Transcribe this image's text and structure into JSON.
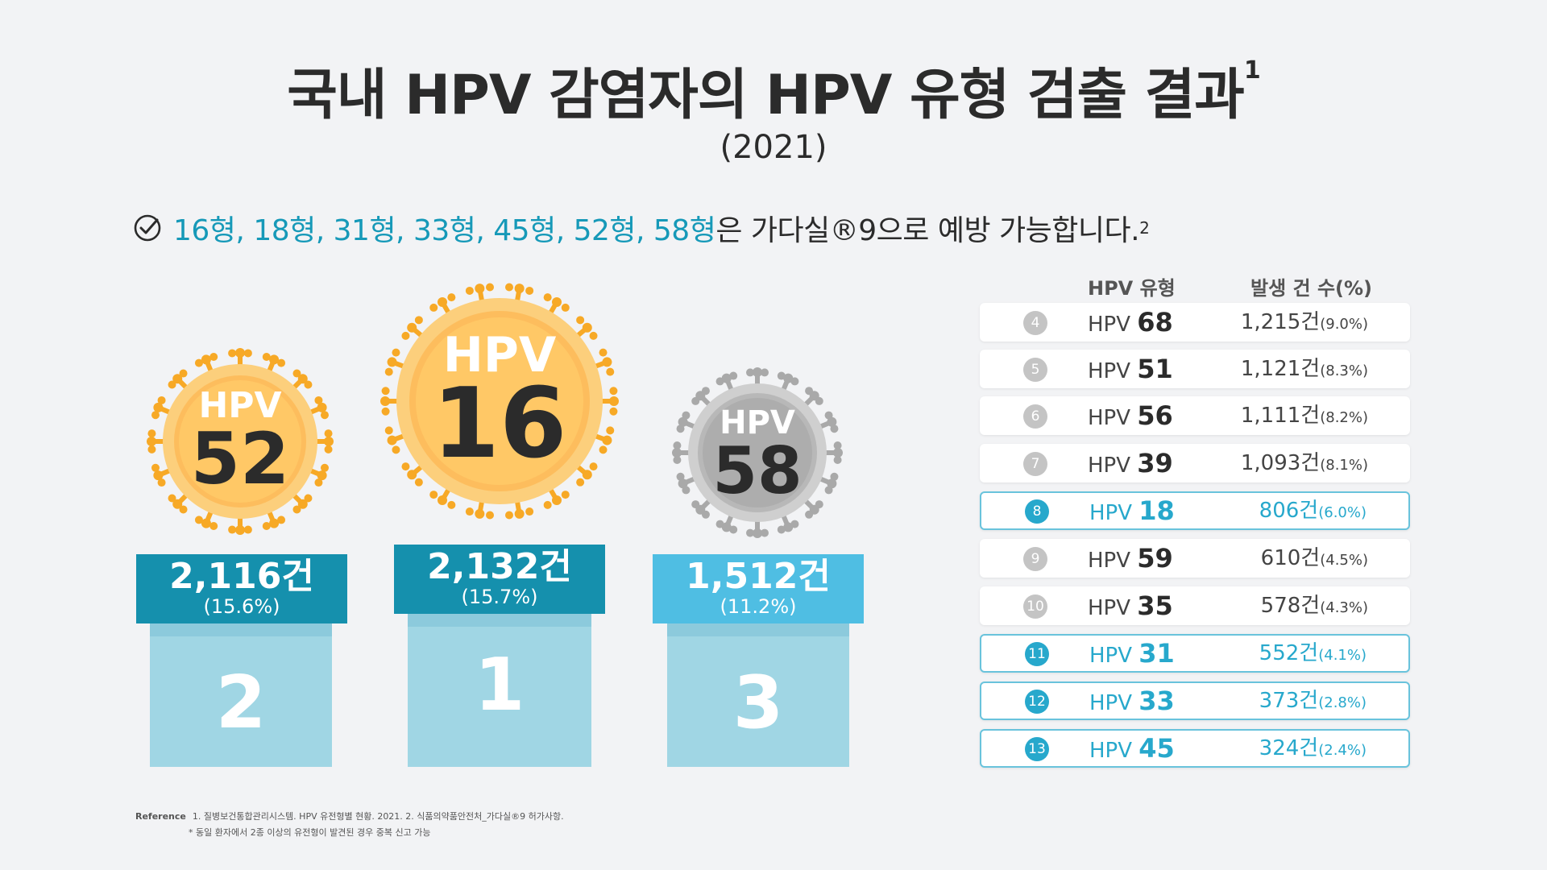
{
  "title": "국내 HPV 감염자의 HPV 유형 검출 결과",
  "title_sup": "1",
  "subtitle": "(2021)",
  "prevent_line": {
    "highlight": "16형, 18형, 31형, 33형, 45형, 52형, 58형",
    "rest": "은 가다실®9으로 예방 가능합니다.",
    "sup": "2"
  },
  "podium": {
    "virus_prefix": "HPV",
    "items": [
      {
        "rank": "2",
        "type": "52",
        "count": "2,116건",
        "pct": "(15.6%)",
        "color": "gold",
        "label_color": "#1590ad"
      },
      {
        "rank": "1",
        "type": "16",
        "count": "2,132건",
        "pct": "(15.7%)",
        "color": "gold",
        "label_color": "#1590ad"
      },
      {
        "rank": "3",
        "type": "58",
        "count": "1,512건",
        "pct": "(11.2%)",
        "color": "gray",
        "label_color": "#4fbee3"
      }
    ]
  },
  "table": {
    "col_type": "HPV 유형",
    "col_count": "발생 건 수(%)",
    "rows": [
      {
        "rank": "4",
        "prefix": "HPV",
        "type": "68",
        "count": "1,215건",
        "pct": "(9.0%)",
        "highlight": false
      },
      {
        "rank": "5",
        "prefix": "HPV",
        "type": "51",
        "count": "1,121건",
        "pct": "(8.3%)",
        "highlight": false
      },
      {
        "rank": "6",
        "prefix": "HPV",
        "type": "56",
        "count": "1,111건",
        "pct": "(8.2%)",
        "highlight": false
      },
      {
        "rank": "7",
        "prefix": "HPV",
        "type": "39",
        "count": "1,093건",
        "pct": "(8.1%)",
        "highlight": false
      },
      {
        "rank": "8",
        "prefix": "HPV",
        "type": "18",
        "count": "806건",
        "pct": "(6.0%)",
        "highlight": true
      },
      {
        "rank": "9",
        "prefix": "HPV",
        "type": "59",
        "count": "610건",
        "pct": "(4.5%)",
        "highlight": false
      },
      {
        "rank": "10",
        "prefix": "HPV",
        "type": "35",
        "count": "578건",
        "pct": "(4.3%)",
        "highlight": false
      },
      {
        "rank": "11",
        "prefix": "HPV",
        "type": "31",
        "count": "552건",
        "pct": "(4.1%)",
        "highlight": true
      },
      {
        "rank": "12",
        "prefix": "HPV",
        "type": "33",
        "count": "373건",
        "pct": "(2.8%)",
        "highlight": true
      },
      {
        "rank": "13",
        "prefix": "HPV",
        "type": "45",
        "count": "324건",
        "pct": "(2.4%)",
        "highlight": true
      }
    ]
  },
  "reference": {
    "label": "Reference",
    "text": "1. 질병보건통합관리시스템. HPV 유전형별 현황. 2021. 2. 식품의약품안전처_가다실®9 허가사항.",
    "note": "* 동일 환자에서 2종 이상의 유전형이 발견된 경우 중복 신고 가능"
  },
  "chart_data": {
    "type": "table",
    "title": "국내 HPV 감염자의 HPV 유형 검출 결과",
    "subtitle": "(2021)",
    "columns": [
      "HPV 유형",
      "발생 건 수(%)"
    ],
    "rows": [
      {
        "rank": 1,
        "type": "HPV 16",
        "count": 2132,
        "percent": 15.7
      },
      {
        "rank": 2,
        "type": "HPV 52",
        "count": 2116,
        "percent": 15.6
      },
      {
        "rank": 3,
        "type": "HPV 58",
        "count": 1512,
        "percent": 11.2
      },
      {
        "rank": 4,
        "type": "HPV 68",
        "count": 1215,
        "percent": 9.0
      },
      {
        "rank": 5,
        "type": "HPV 51",
        "count": 1121,
        "percent": 8.3
      },
      {
        "rank": 6,
        "type": "HPV 56",
        "count": 1111,
        "percent": 8.2
      },
      {
        "rank": 7,
        "type": "HPV 39",
        "count": 1093,
        "percent": 8.1
      },
      {
        "rank": 8,
        "type": "HPV 18",
        "count": 806,
        "percent": 6.0
      },
      {
        "rank": 9,
        "type": "HPV 59",
        "count": 610,
        "percent": 4.5
      },
      {
        "rank": 10,
        "type": "HPV 35",
        "count": 578,
        "percent": 4.3
      },
      {
        "rank": 11,
        "type": "HPV 31",
        "count": 552,
        "percent": 4.1
      },
      {
        "rank": 12,
        "type": "HPV 33",
        "count": 373,
        "percent": 2.8
      },
      {
        "rank": 13,
        "type": "HPV 45",
        "count": 324,
        "percent": 2.4
      }
    ]
  }
}
